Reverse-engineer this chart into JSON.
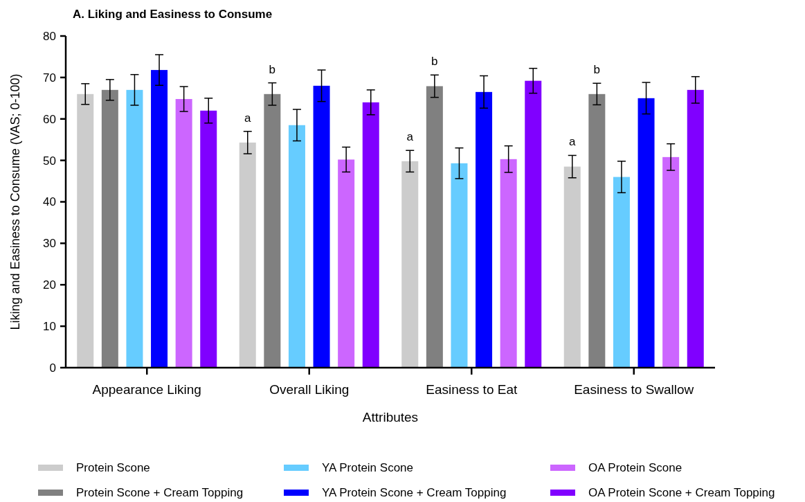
{
  "chart_data": {
    "type": "bar",
    "title": "A. Liking and Easiness to Consume",
    "xlabel": "Attributes",
    "ylabel": "Liking and Easiness to Consume (VAS; 0-100)",
    "categories": [
      "Appearance Liking",
      "Overall Liking",
      "Easiness to Eat",
      "Easiness to Swallow"
    ],
    "series": [
      {
        "name": "Protein Scone",
        "color": "#cccccc",
        "values": [
          66,
          54.3,
          49.8,
          48.5
        ],
        "errors": [
          2.5,
          2.7,
          2.6,
          2.7
        ],
        "value_labels": [
          null,
          "a",
          "a",
          "a"
        ]
      },
      {
        "name": "Protein Scone + Cream Topping",
        "color": "#808080",
        "values": [
          67,
          66,
          67.9,
          66
        ],
        "errors": [
          2.5,
          2.7,
          2.7,
          2.6
        ],
        "value_labels": [
          null,
          "b",
          "b",
          "b"
        ]
      },
      {
        "name": "YA Protein Scone",
        "color": "#66ccff",
        "values": [
          67,
          58.5,
          49.3,
          46
        ],
        "errors": [
          3.7,
          3.8,
          3.7,
          3.8
        ]
      },
      {
        "name": "YA Protein Scone + Cream Topping",
        "color": "#0000ff",
        "values": [
          71.8,
          68,
          66.5,
          65
        ],
        "errors": [
          3.7,
          3.8,
          3.9,
          3.8
        ]
      },
      {
        "name": "OA Protein Scone",
        "color": "#cc66ff",
        "values": [
          64.8,
          50.2,
          50.3,
          50.8
        ],
        "errors": [
          3,
          3,
          3.2,
          3.2
        ]
      },
      {
        "name": "OA Protein Scone + Cream Topping",
        "color": "#8000ff",
        "values": [
          62,
          64,
          69.2,
          67
        ],
        "errors": [
          3,
          3,
          3,
          3.2
        ]
      }
    ],
    "ylim": [
      0,
      80
    ],
    "yticks": [
      0,
      10,
      20,
      30,
      40,
      50,
      60,
      70,
      80
    ],
    "grid": false,
    "legend": "bottom"
  }
}
